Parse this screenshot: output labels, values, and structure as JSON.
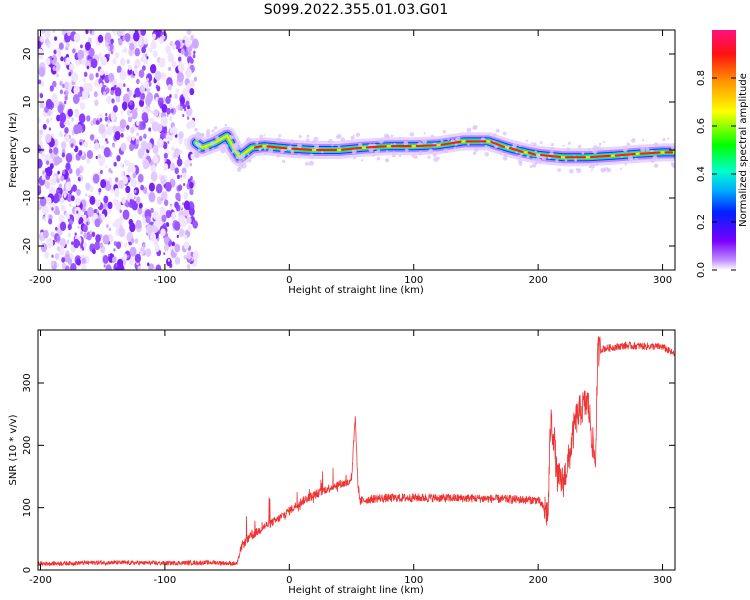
{
  "title": "S099.2022.355.01.03.G01",
  "chart_data": [
    {
      "type": "heatmap",
      "xlabel": "Height of straight line (km)",
      "ylabel": "Frequency (Hz)",
      "xlim": [
        -202,
        310
      ],
      "ylim": [
        -25,
        25
      ],
      "xticks": [
        -200,
        -100,
        0,
        100,
        200,
        300
      ],
      "yticks": [
        -20,
        -10,
        0,
        10,
        20
      ],
      "grid": false,
      "noise_region_x": [
        -202,
        -75
      ],
      "signal_trace": {
        "x": [
          -75,
          -70,
          -60,
          -50,
          -45,
          -40,
          -30,
          -20,
          0,
          20,
          40,
          60,
          80,
          100,
          120,
          140,
          160,
          175,
          190,
          200,
          220,
          240,
          260,
          280,
          300,
          310
        ],
        "frequency": [
          1.5,
          0.5,
          1.5,
          3.0,
          0.5,
          -1.5,
          0.5,
          0.8,
          0.3,
          0.0,
          0.0,
          0.5,
          0.8,
          0.8,
          1.0,
          1.8,
          1.8,
          0.5,
          -0.5,
          -1.0,
          -1.5,
          -1.5,
          -1.2,
          -0.8,
          -0.5,
          -0.5
        ]
      },
      "colorbar": {
        "label": "Normalized spectral amplitude",
        "range": [
          0,
          1
        ],
        "ticks": [
          "0.0",
          "0.2",
          "0.4",
          "0.6",
          "0.8"
        ],
        "tick_values": [
          0.0,
          0.2,
          0.4,
          0.6,
          0.8
        ]
      }
    },
    {
      "type": "line",
      "xlabel": "Height of straight line (km)",
      "ylabel": "SNR (10 * v/v)",
      "xlim": [
        -202,
        310
      ],
      "ylim": [
        0,
        385
      ],
      "xticks": [
        -200,
        -100,
        0,
        100,
        200,
        300
      ],
      "yticks": [
        0,
        100,
        200,
        300
      ],
      "grid": false,
      "color": "#ee3333",
      "series": [
        {
          "x": [
            -202,
            -150,
            -100,
            -60,
            -42,
            -38,
            -30,
            -20,
            -10,
            0,
            10,
            20,
            30,
            40,
            50,
            53,
            55,
            57,
            60,
            70,
            100,
            150,
            200,
            208,
            210,
            213,
            215,
            220,
            225,
            230,
            235,
            240,
            244,
            246,
            248,
            252,
            270,
            300,
            310
          ],
          "values": [
            10,
            12,
            11,
            12,
            10,
            40,
            55,
            70,
            80,
            95,
            110,
            120,
            130,
            138,
            140,
            250,
            140,
            110,
            112,
            115,
            116,
            115,
            112,
            90,
            240,
            210,
            150,
            140,
            180,
            240,
            260,
            270,
            200,
            170,
            350,
            355,
            360,
            358,
            345
          ]
        }
      ]
    }
  ]
}
